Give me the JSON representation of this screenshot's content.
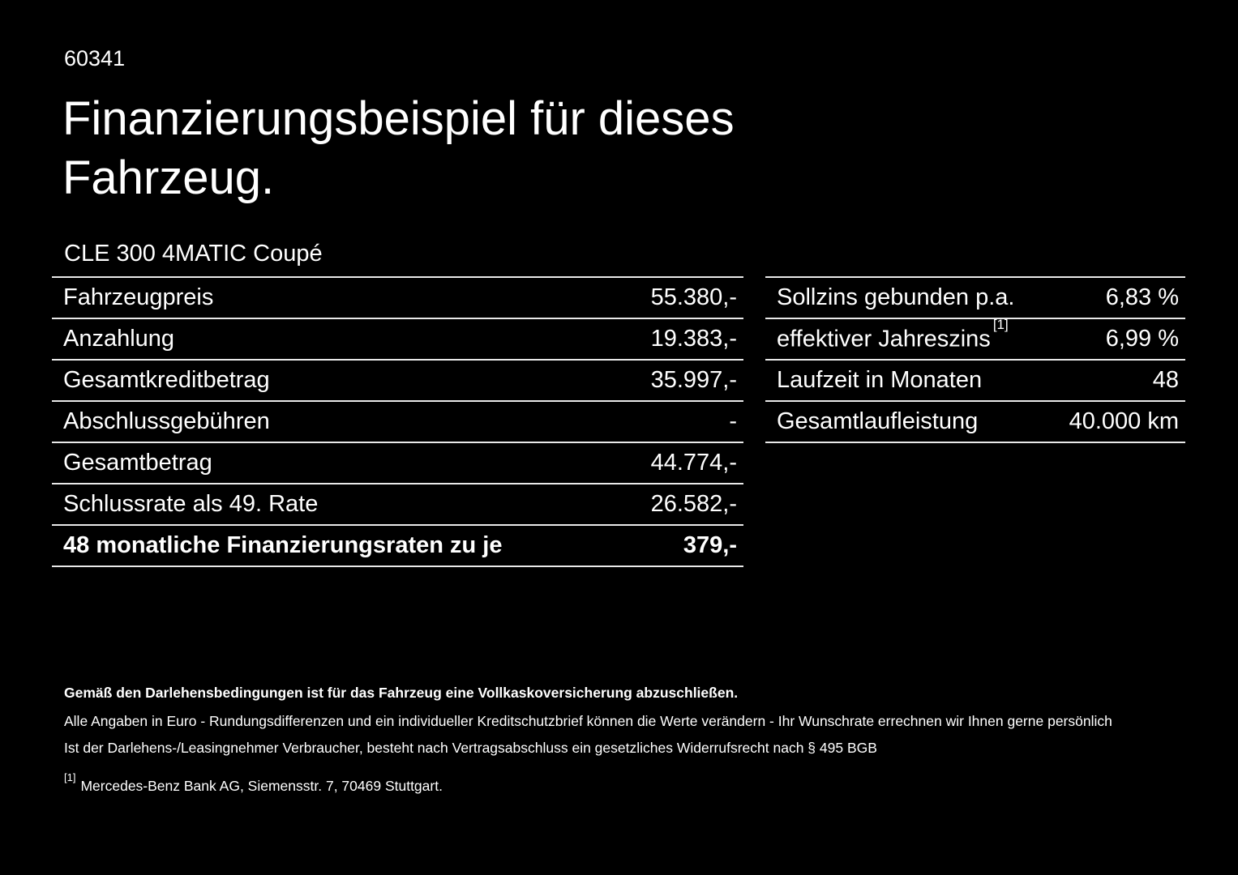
{
  "page": {
    "background": "#000000",
    "text_color": "#ffffff",
    "divider_color": "#e9e9e9"
  },
  "header": {
    "ref_number": "60341",
    "title_line1": "Finanzierungsbeispiel für dieses",
    "title_line2": "Fahrzeug.",
    "vehicle_model": "CLE 300 4MATIC Coupé"
  },
  "left_table": {
    "rows": [
      {
        "label": "Fahrzeugpreis",
        "value": "55.380,-"
      },
      {
        "label": "Anzahlung",
        "value": "19.383,-"
      },
      {
        "label": "Gesamtkreditbetrag",
        "value": "35.997,-"
      },
      {
        "label": "Abschlussgebühren",
        "value": "-"
      },
      {
        "label": "Gesamtbetrag",
        "value": "44.774,-"
      },
      {
        "label": "Schlussrate als 49. Rate",
        "value": "26.582,-"
      },
      {
        "label": "48 monatliche Finanzierungsraten zu je",
        "value": "379,-"
      }
    ]
  },
  "right_table": {
    "rows": [
      {
        "label": "Sollzins gebunden p.a.",
        "sup": "",
        "value": "6,83 %"
      },
      {
        "label": "effektiver Jahreszins",
        "sup": "[1]",
        "value": "6,99 %"
      },
      {
        "label": "Laufzeit in Monaten",
        "sup": "",
        "value": "48"
      },
      {
        "label": "Gesamtlaufleistung",
        "sup": "",
        "value": "40.000 km"
      }
    ]
  },
  "footnotes": {
    "bold_line": "Gemäß den Darlehensbedingungen ist für das Fahrzeug eine Vollkaskoversicherung abzuschließen.",
    "line2": "Alle Angaben in Euro - Rundungsdifferenzen und ein individueller Kreditschutzbrief können die Werte verändern - Ihr Wunschrate errechnen wir Ihnen gerne persönlich",
    "line3": "Ist der Darlehens-/Leasingnehmer Verbraucher, besteht nach Vertragsabschluss ein gesetzliches Widerrufsrecht nach § 495 BGB",
    "ref_marker": "[1]",
    "ref_text": "Mercedes-Benz Bank AG, Siemensstr. 7, 70469 Stuttgart."
  }
}
